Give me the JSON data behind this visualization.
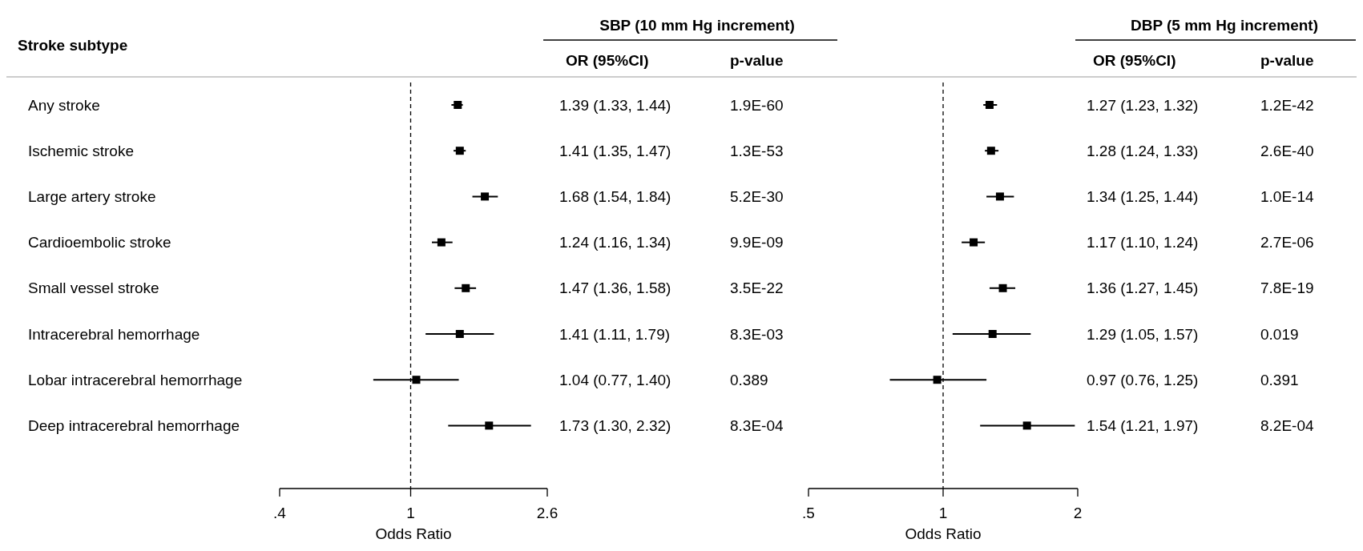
{
  "chart_data": [
    {
      "type": "scatter",
      "orientation": "horizontal",
      "ylabel": "Stroke subtype",
      "xlabel": "Odds Ratio",
      "log": "x",
      "marker": "square",
      "color": "#000000",
      "categories": [
        "Any stroke",
        "Ischemic stroke",
        "Large artery stroke",
        "Cardioembolic stroke",
        "Small vessel stroke",
        "Intracerebral hemorrhage",
        "Lobar intracerebral hemorrhage",
        "Deep intracerebral hemorrhage"
      ],
      "values": [
        1.39,
        1.41,
        1.68,
        1.24,
        1.47,
        1.41,
        1.04,
        1.73
      ],
      "errors": [
        [
          1.33,
          1.44
        ],
        [
          1.35,
          1.47
        ],
        [
          1.54,
          1.84
        ],
        [
          1.16,
          1.34
        ],
        [
          1.36,
          1.58
        ],
        [
          1.11,
          1.79
        ],
        [
          0.77,
          1.4
        ],
        [
          1.3,
          2.32
        ]
      ],
      "value_labels": [
        "1.39 (1.33, 1.44)",
        "1.41 (1.35, 1.47)",
        "1.68 (1.54, 1.84)",
        "1.24 (1.16, 1.34)",
        "1.47 (1.36, 1.58)",
        "1.41 (1.11, 1.79)",
        "1.04 (0.77, 1.40)",
        "1.73 (1.30, 2.32)"
      ],
      "xlim": [
        0.4,
        2.6
      ],
      "xticks": [
        {
          "value": 0.4,
          "label": ".4"
        },
        1,
        2.6
      ],
      "ref_lines": [
        {
          "axis": "x",
          "value": 1,
          "line_style": "dashed"
        }
      ],
      "annotations": [
        "SBP (10 mm Hg increment)",
        "OR (95%CI)",
        "p-value",
        "1.9E-60",
        "1.3E-53",
        "5.2E-30",
        "9.9E-09",
        "3.5E-22",
        "8.3E-03",
        "0.389",
        "8.3E-04"
      ]
    },
    {
      "type": "scatter",
      "orientation": "horizontal",
      "xlabel": "Odds Ratio",
      "log": "x",
      "marker": "square",
      "color": "#000000",
      "tick_labels": "x",
      "categories": [
        null,
        null,
        null,
        null,
        null,
        null,
        null,
        null
      ],
      "values": [
        1.27,
        1.28,
        1.34,
        1.17,
        1.36,
        1.29,
        0.97,
        1.54
      ],
      "errors": [
        [
          1.23,
          1.32
        ],
        [
          1.24,
          1.33
        ],
        [
          1.25,
          1.44
        ],
        [
          1.1,
          1.24
        ],
        [
          1.27,
          1.45
        ],
        [
          1.05,
          1.57
        ],
        [
          0.76,
          1.25
        ],
        [
          1.21,
          1.97
        ]
      ],
      "value_labels": [
        "1.27 (1.23, 1.32)",
        "1.28 (1.24, 1.33)",
        "1.34 (1.25, 1.44)",
        "1.17 (1.10, 1.24)",
        "1.36 (1.27, 1.45)",
        "1.29 (1.05, 1.57)",
        "0.97 (0.76, 1.25)",
        "1.54 (1.21, 1.97)"
      ],
      "xlim": [
        0.5,
        2
      ],
      "xticks": [
        {
          "value": 0.5,
          "label": ".5"
        },
        1,
        2
      ],
      "ref_lines": [
        {
          "axis": "x",
          "value": 1,
          "line_style": "dashed"
        }
      ],
      "annotations": [
        "DBP (5 mm Hg increment)",
        "OR (95%CI)",
        "p-value",
        "1.2E-42",
        "2.6E-40",
        "1.0E-14",
        "2.7E-06",
        "7.8E-19",
        "0.019",
        "0.391",
        "8.2E-04"
      ]
    }
  ]
}
